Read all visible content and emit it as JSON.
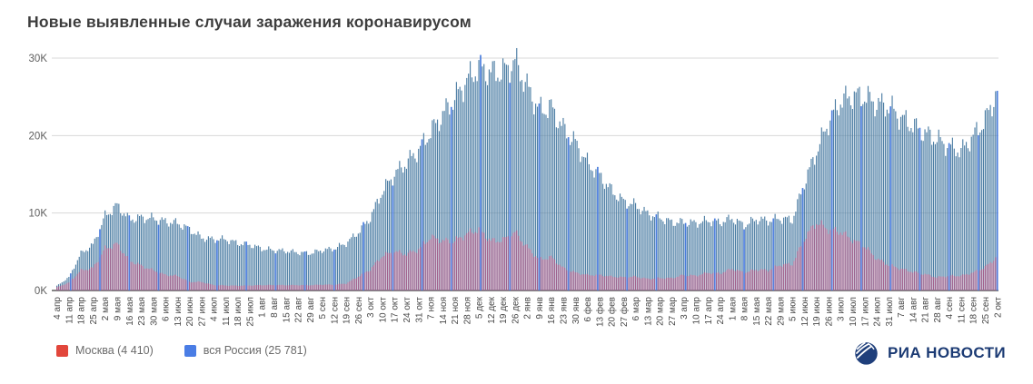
{
  "header": {
    "title": "Новые выявленные случаи заражения коронавирусом"
  },
  "legend": {
    "items": [
      {
        "label": "Москва (4 410)",
        "color": "#e2463b"
      },
      {
        "label": "вся Россия (25 781)",
        "color": "#4a7de5"
      }
    ]
  },
  "footer": {
    "brand": "РИА НОВОСТИ",
    "logo_icon": "ria-globe-icon"
  },
  "colors": {
    "background": "#ffffff",
    "title_text": "#3d3d3d",
    "gridline": "#d8d8d8",
    "axis_line": "#3c3c3c",
    "moscow_bar": "#a2628e",
    "russia_bar": "#4d7ea4",
    "highlight_bar": "#4a7de5",
    "brand_navy": "#1c3b74"
  },
  "chart_data": {
    "type": "bar",
    "title": "Новые выявленные случаи заражения коронавирусом",
    "xlabel": "",
    "ylabel": "",
    "ylim": [
      0,
      30000
    ],
    "grid": "horizontal",
    "legend_position": "bottom-left",
    "yticks": [
      {
        "label": "30K",
        "value": 30000
      },
      {
        "label": "20K",
        "value": 20000
      },
      {
        "label": "10K",
        "value": 10000
      },
      {
        "label": "0K",
        "value": 0
      }
    ],
    "sampling": "weekly tick anchors of daily bars (4 апр 2020 — 2 окт 2021)",
    "categories": [
      "4 апр",
      "11 апр",
      "18 апр",
      "25 апр",
      "2 мая",
      "9 мая",
      "16 мая",
      "23 мая",
      "30 мая",
      "6 июн",
      "13 июн",
      "20 июн",
      "27 июн",
      "4 июл",
      "11 июл",
      "18 июл",
      "25 июл",
      "1 авг",
      "8 авг",
      "15 авг",
      "22 авг",
      "29 авг",
      "5 сен",
      "12 сен",
      "19 сен",
      "26 сен",
      "3 окт",
      "10 окт",
      "17 окт",
      "24 окт",
      "31 окт",
      "7 ноя",
      "14 ноя",
      "21 ноя",
      "28 ноя",
      "5 дек",
      "12 дек",
      "19 дек",
      "26 дек",
      "2 янв",
      "9 янв",
      "16 янв",
      "23 янв",
      "30 янв",
      "6 фев",
      "13 фев",
      "20 фев",
      "27 фев",
      "6 мар",
      "13 мар",
      "20 мар",
      "27 мар",
      "3 апр",
      "10 апр",
      "17 апр",
      "24 апр",
      "1 мая",
      "8 мая",
      "15 мая",
      "22 мая",
      "29 мая",
      "5 июн",
      "12 июн",
      "19 июн",
      "26 июн",
      "3 июл",
      "10 июл",
      "17 июл",
      "24 июл",
      "31 июл",
      "7 авг",
      "14 авг",
      "21 авг",
      "28 авг",
      "4 сен",
      "11 сен",
      "18 сен",
      "25 сен",
      "2 окт"
    ],
    "series": [
      {
        "name": "вся Россия",
        "latest_value": 25781,
        "bar_color": "#4d7ea4",
        "legend_color": "#4a7de5",
        "values": [
          600,
          1700,
          4800,
          5900,
          9600,
          11000,
          9200,
          9400,
          9300,
          8900,
          8700,
          7900,
          6800,
          6600,
          6600,
          6100,
          5900,
          5400,
          5200,
          5100,
          4900,
          4800,
          5200,
          5400,
          6100,
          7500,
          9400,
          12800,
          15000,
          16500,
          18100,
          20500,
          22700,
          24800,
          27100,
          28800,
          28100,
          28200,
          29600,
          26300,
          23300,
          23600,
          20900,
          19100,
          16500,
          14900,
          12900,
          11500,
          11000,
          9900,
          9400,
          8800,
          8800,
          8700,
          9000,
          8800,
          9300,
          8400,
          9200,
          9000,
          9300,
          9100,
          13900,
          17900,
          21700,
          24400,
          25100,
          25000,
          24100,
          23800,
          22300,
          21300,
          20300,
          19500,
          18600,
          18000,
          19900,
          22000,
          25781
        ]
      },
      {
        "name": "Москва",
        "latest_value": 4410,
        "bar_color": "#a2628e",
        "legend_color": "#e2463b",
        "values": [
          430,
          1000,
          2600,
          2900,
          5400,
          6000,
          3900,
          3200,
          2600,
          2000,
          1900,
          1100,
          1100,
          700,
          650,
          620,
          650,
          690,
          690,
          690,
          690,
          680,
          750,
          750,
          900,
          1800,
          2700,
          4500,
          5000,
          4700,
          5300,
          6900,
          6400,
          6400,
          7300,
          7900,
          6400,
          6500,
          7500,
          5600,
          4000,
          4300,
          2900,
          2300,
          2000,
          2000,
          1800,
          1700,
          1800,
          1500,
          1600,
          1600,
          2000,
          1900,
          2300,
          2200,
          2800,
          2300,
          2700,
          2600,
          3300,
          3400,
          6700,
          8800,
          7900,
          7600,
          6500,
          5700,
          4100,
          3300,
          2800,
          2400,
          2100,
          1700,
          1900,
          1900,
          2300,
          3000,
          4410
        ]
      }
    ]
  }
}
